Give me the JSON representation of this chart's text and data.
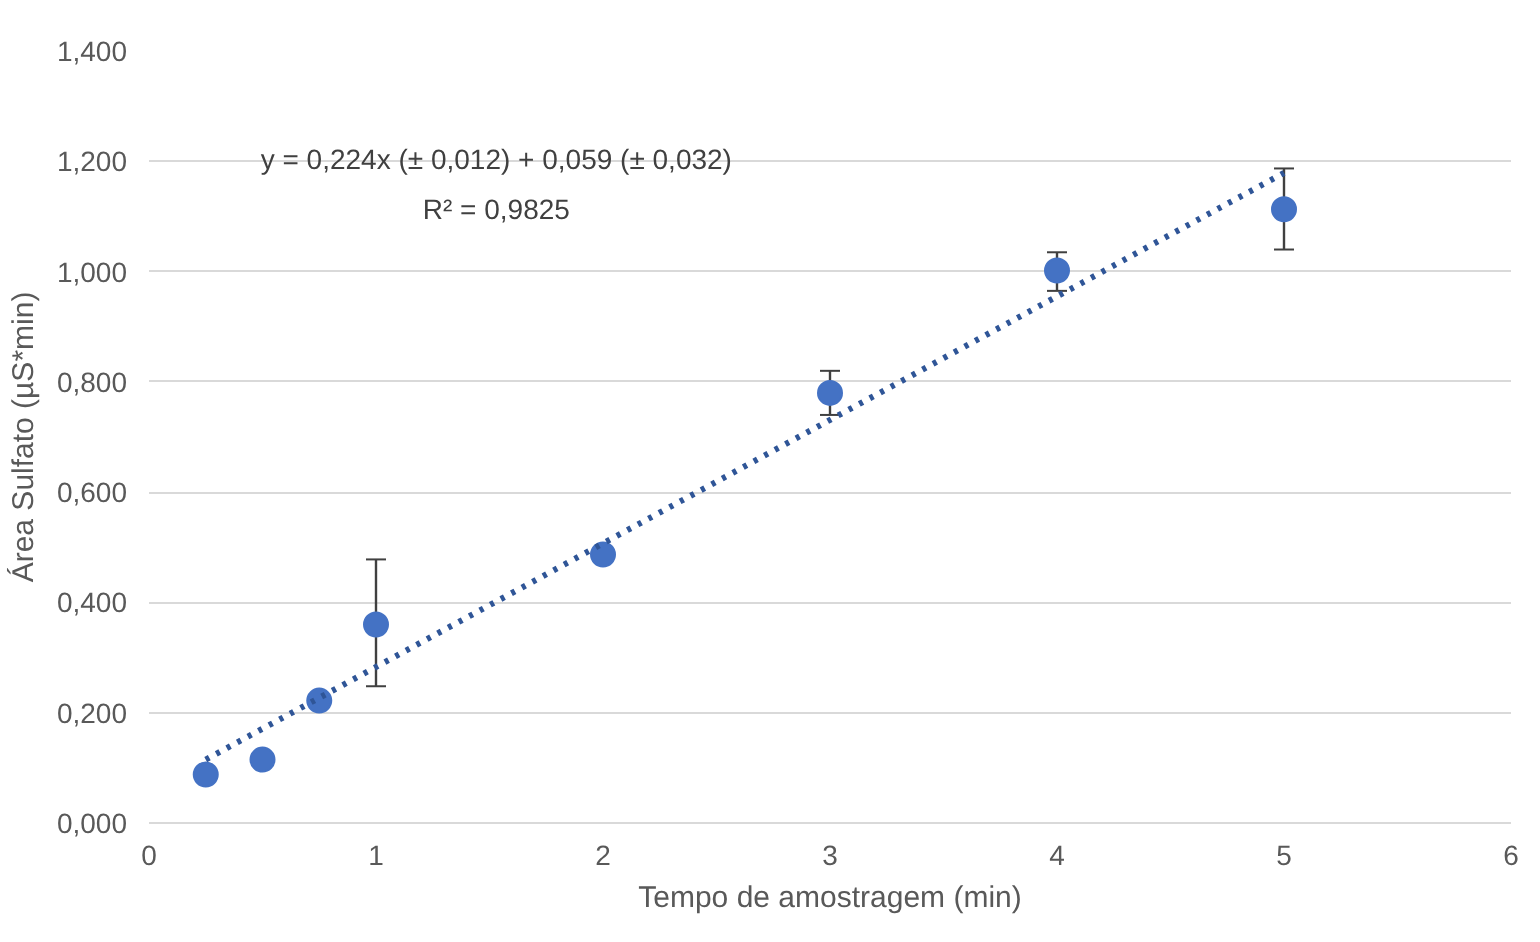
{
  "chart_data": {
    "type": "scatter",
    "xlabel": "Tempo de amostragem (min)",
    "ylabel": "Área Sulfato (µS*min)",
    "xlim": [
      0,
      6
    ],
    "xticks": [
      0,
      1,
      2,
      3,
      4,
      5,
      6
    ],
    "ylim": [
      0,
      1.4
    ],
    "yticks": [
      {
        "value": 0,
        "label": "0,000"
      },
      {
        "value": 0.2,
        "label": "0,200"
      },
      {
        "value": 0.4,
        "label": "0,400"
      },
      {
        "value": 0.6,
        "label": "0,600"
      },
      {
        "value": 0.8,
        "label": "0,800"
      },
      {
        "value": 1.0,
        "label": "1,000"
      },
      {
        "value": 1.2,
        "label": "1,200"
      },
      {
        "value": 1.4,
        "label": "1,400"
      }
    ],
    "grid": "y",
    "marker": "circle",
    "series": [
      {
        "color": "#4472c4",
        "x": [
          0.25,
          0.5,
          0.75,
          1,
          2,
          3,
          4,
          5
        ],
        "values": [
          0.088,
          0.115,
          0.222,
          0.36,
          0.487,
          0.78,
          1.002,
          1.113
        ],
        "errors": [
          null,
          null,
          null,
          [
            0.248,
            0.478
          ],
          null,
          [
            0.74,
            0.82
          ],
          [
            0.965,
            1.035
          ],
          [
            1.04,
            1.187
          ]
        ]
      },
      {
        "type": "line",
        "color": "#2f5597",
        "line_style": "dotted",
        "marker": "none",
        "x": [
          0.25,
          5
        ],
        "values": [
          0.115,
          1.179
        ]
      }
    ],
    "annotations": [
      "y = 0,224x (± 0,012) + 0,059 (± 0,032)",
      "R² = 0,9825"
    ]
  }
}
